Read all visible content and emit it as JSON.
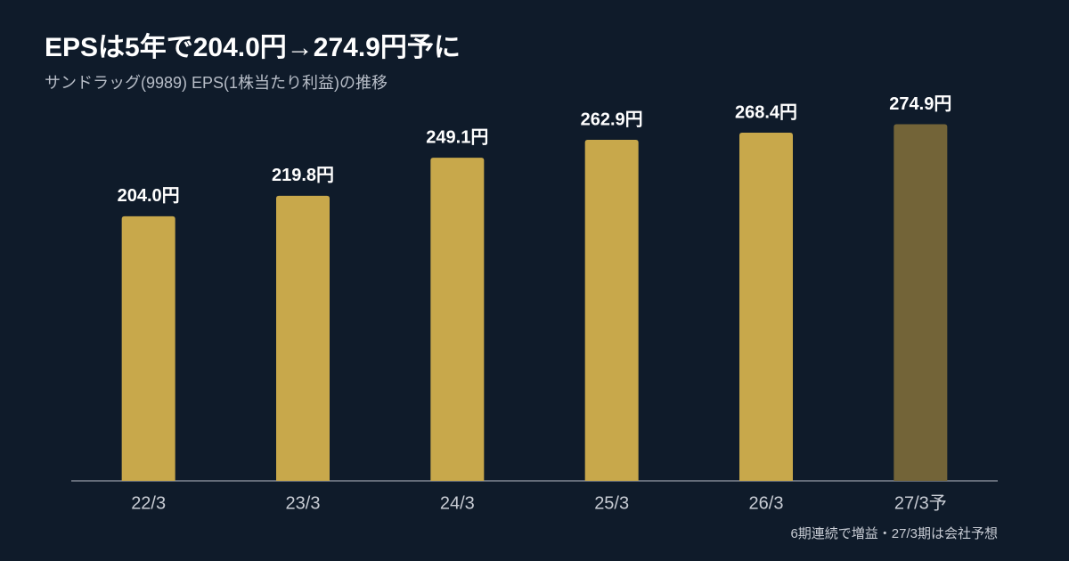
{
  "chart_data": {
    "type": "bar",
    "title": "EPSは5年で204.0円→274.9円予に",
    "subtitle": "サンドラッグ(9989) EPS(1株当たり利益)の推移",
    "footnote": "6期連続で増益・27/3期は会社予想",
    "categories": [
      "22/3",
      "23/3",
      "24/3",
      "25/3",
      "26/3",
      "27/3予"
    ],
    "values": [
      204.0,
      219.8,
      249.1,
      262.9,
      268.4,
      274.9
    ],
    "value_labels": [
      "204.0円",
      "219.8円",
      "249.1円",
      "262.9円",
      "268.4円",
      "274.9円"
    ],
    "colors": [
      "#c8a84b",
      "#c8a84b",
      "#c8a84b",
      "#c8a84b",
      "#c8a84b",
      "#736438"
    ],
    "ylim": [
      0,
      300
    ]
  }
}
